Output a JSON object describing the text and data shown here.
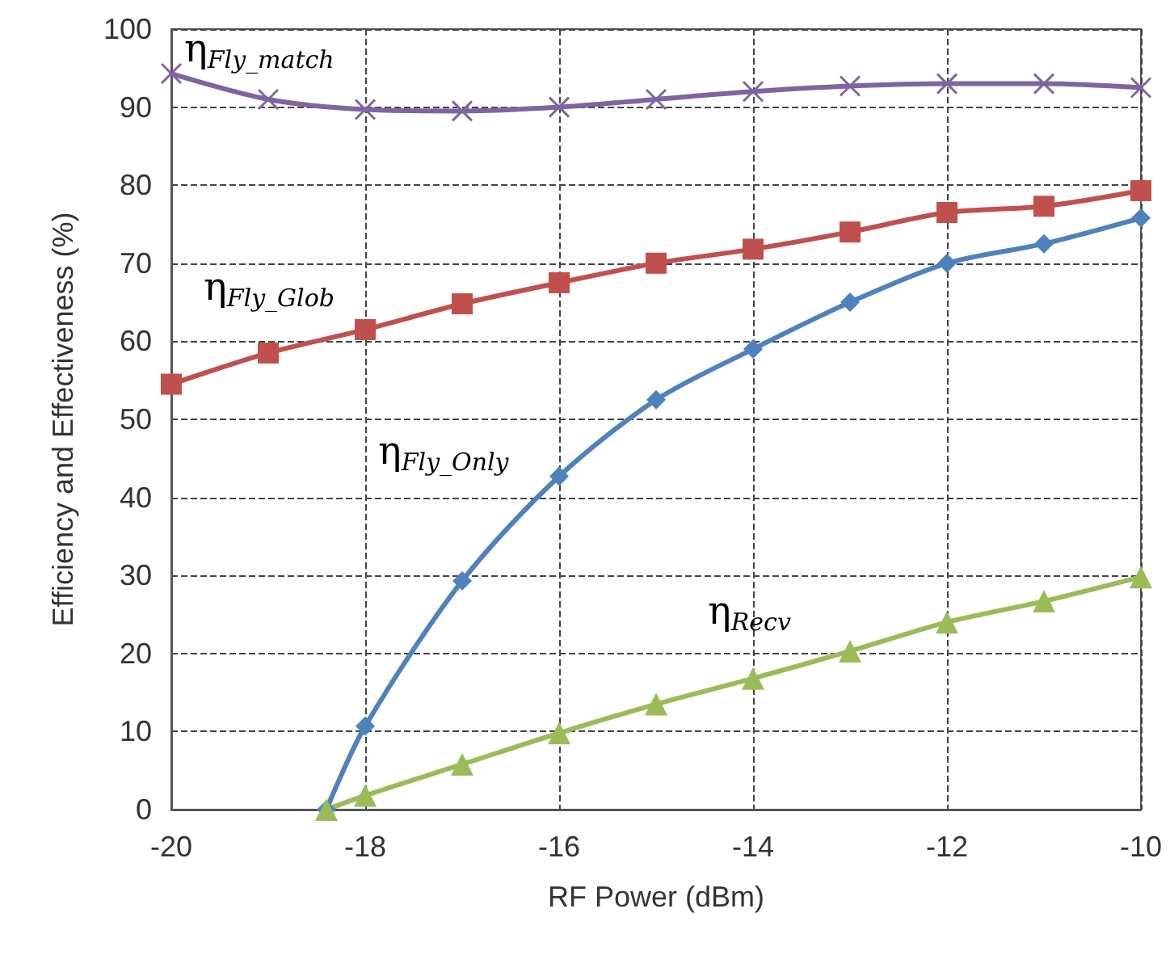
{
  "chart_data": {
    "type": "line",
    "xlabel": "RF Power (dBm)",
    "ylabel": "Efficiency and Effectiveness (%)",
    "x": [
      -20,
      -19,
      -18,
      -17,
      -16,
      -15,
      -14,
      -13,
      -12,
      -11,
      -10
    ],
    "xlim": [
      -20,
      -10
    ],
    "xticks": [
      -20,
      -18,
      -16,
      -14,
      -12,
      -10
    ],
    "ylim": [
      0,
      100
    ],
    "yticks": [
      0,
      10,
      20,
      30,
      40,
      50,
      60,
      70,
      80,
      90,
      100
    ],
    "grid": true,
    "legend": false,
    "line_style": "solid",
    "series": [
      {
        "name": "η$_{Fly_match}$",
        "color": "#8064a2",
        "marker": "cross",
        "values": [
          94.3,
          91,
          89.7,
          89.5,
          90,
          91,
          92,
          92.7,
          93,
          93,
          92.5
        ]
      },
      {
        "name": "η$_{Fly_Glob}$",
        "color": "#c0504d",
        "marker": "square",
        "values": [
          54.5,
          58.5,
          61.5,
          64.8,
          67.5,
          70,
          71.8,
          74,
          76.5,
          77.3,
          79.3
        ]
      },
      {
        "name": "η$_{Fly_Only}$",
        "color": "#4f81bd",
        "marker": "diamond",
        "x": [
          -18.4,
          -18,
          -17,
          -16,
          -15,
          -14,
          -13,
          -12,
          -11,
          -10
        ],
        "values": [
          0,
          10.7,
          29.3,
          42.7,
          52.5,
          59,
          65,
          70,
          72.5,
          75.8
        ]
      },
      {
        "name": "η$_{Recv}$",
        "color": "#9bbb59",
        "marker": "triangle",
        "x": [
          -18.4,
          -18,
          -17,
          -16,
          -15,
          -14,
          -13,
          -12,
          -11,
          -10
        ],
        "values": [
          0,
          1.8,
          5.8,
          9.8,
          13.5,
          16.8,
          20.3,
          24,
          26.7,
          29.8
        ]
      }
    ]
  }
}
